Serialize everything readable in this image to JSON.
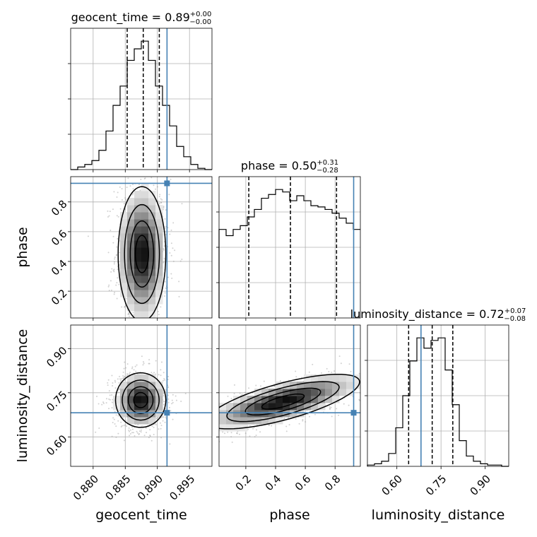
{
  "chart_data": {
    "type": "corner",
    "parameters": [
      "geocent_time",
      "phase",
      "luminosity_distance"
    ],
    "axis_labels": [
      "geocent_time",
      "phase",
      "luminosity_distance"
    ],
    "truths": [
      0.8915,
      0.925,
      0.682
    ],
    "titles": [
      {
        "param": "geocent_time",
        "main": "geocent_time = 0.89",
        "plus": "+0.00",
        "minus": "−0.00"
      },
      {
        "param": "phase",
        "main": "phase = 0.50",
        "plus": "+0.31",
        "minus": "−0.28"
      },
      {
        "param": "luminosity_distance",
        "main": "luminosity_distance = 0.72",
        "plus": "+0.07",
        "minus": "−0.08"
      }
    ],
    "ranges": {
      "geocent_time": [
        0.8765,
        0.8985
      ],
      "phase": [
        0.02,
        0.97
      ],
      "luminosity_distance": [
        0.5,
        0.98
      ]
    },
    "ticks": {
      "geocent_time": {
        "values": [
          0.88,
          0.885,
          0.89,
          0.895
        ],
        "labels": [
          "0.880",
          "0.885",
          "0.890",
          "0.895"
        ]
      },
      "phase": {
        "values": [
          0.2,
          0.4,
          0.6,
          0.8
        ],
        "labels": [
          "0.2",
          "0.4",
          "0.6",
          "0.8"
        ]
      },
      "luminosity_distance": {
        "values": [
          0.6,
          0.75,
          0.9
        ],
        "labels": [
          "0.60",
          "0.75",
          "0.90"
        ]
      }
    },
    "quantiles": {
      "geocent_time": [
        0.8853,
        0.8878,
        0.8903
      ],
      "phase": [
        0.22,
        0.5,
        0.81
      ],
      "luminosity_distance": [
        0.64,
        0.72,
        0.79
      ]
    },
    "histograms": {
      "geocent_time": {
        "edges": [
          0.8765,
          0.8776,
          0.8787,
          0.8798,
          0.8809,
          0.882,
          0.8831,
          0.8842,
          0.8853,
          0.8864,
          0.8875,
          0.8886,
          0.8897,
          0.8908,
          0.8919,
          0.893,
          0.8941,
          0.8952,
          0.8963,
          0.8974,
          0.8985
        ],
        "counts": [
          0,
          2,
          4,
          7,
          15,
          30,
          50,
          65,
          85,
          94,
          100,
          85,
          65,
          50,
          34,
          18,
          10,
          4,
          1,
          0
        ]
      },
      "phase": {
        "edges": [
          0.02,
          0.0675,
          0.115,
          0.1625,
          0.21,
          0.2575,
          0.305,
          0.3525,
          0.4,
          0.4475,
          0.495,
          0.5425,
          0.59,
          0.6375,
          0.685,
          0.7325,
          0.78,
          0.8275,
          0.875,
          0.9225,
          0.97
        ],
        "counts": [
          71,
          66,
          71,
          74,
          81,
          87,
          96,
          99,
          103,
          101,
          94,
          98,
          94,
          90,
          89,
          87,
          84,
          80,
          76,
          71
        ]
      },
      "luminosity_distance": {
        "edges": [
          0.5,
          0.524,
          0.548,
          0.572,
          0.596,
          0.62,
          0.644,
          0.668,
          0.692,
          0.716,
          0.74,
          0.764,
          0.788,
          0.812,
          0.836,
          0.86,
          0.884,
          0.908,
          0.932,
          0.956,
          0.98
        ],
        "counts": [
          1,
          2,
          4,
          10,
          30,
          55,
          82,
          100,
          92,
          98,
          100,
          75,
          48,
          20,
          8,
          4,
          2,
          1,
          1,
          0
        ]
      }
    },
    "density_2d": {
      "phase_vs_geocent_time": {
        "mean": [
          0.8876,
          0.45
        ],
        "sd": [
          0.0018,
          0.22
        ],
        "corr": 0.0,
        "levels": [
          0.12,
          0.32,
          0.6,
          0.85
        ]
      },
      "luminosity_distance_vs_geocent_time": {
        "mean": [
          0.8874,
          0.725
        ],
        "sd": [
          0.0019,
          0.045
        ],
        "corr": 0.0,
        "levels": [
          0.12,
          0.32,
          0.6,
          0.85
        ]
      },
      "luminosity_distance_vs_phase": {
        "mean": [
          0.45,
          0.72
        ],
        "sd": [
          0.25,
          0.045
        ],
        "corr": 0.72,
        "levels": [
          0.12,
          0.32,
          0.6,
          0.85
        ]
      }
    },
    "truth_color": "#4682b4",
    "hist_color": "#000000",
    "grid": true
  }
}
